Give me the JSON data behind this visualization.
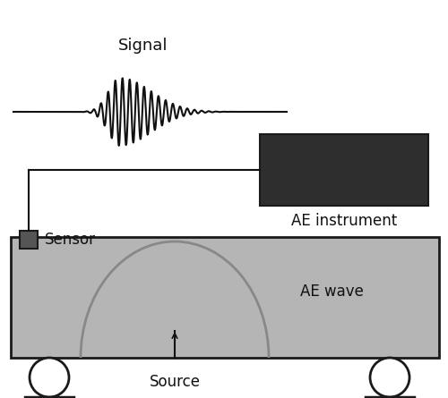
{
  "bg_color": "#ffffff",
  "slab_color": "#b5b5b5",
  "slab_border_color": "#1a1a1a",
  "instrument_color": "#2e2e2e",
  "sensor_color": "#555555",
  "circle_color": "#888888",
  "text_color": "#111111",
  "signal_label": "Signal",
  "sensor_label": "Sensor",
  "ae_instrument_label": "AE instrument",
  "ae_wave_label": "AE wave",
  "source_label": "Source",
  "fig_w": 5.0,
  "fig_h": 4.45,
  "dpi": 100
}
